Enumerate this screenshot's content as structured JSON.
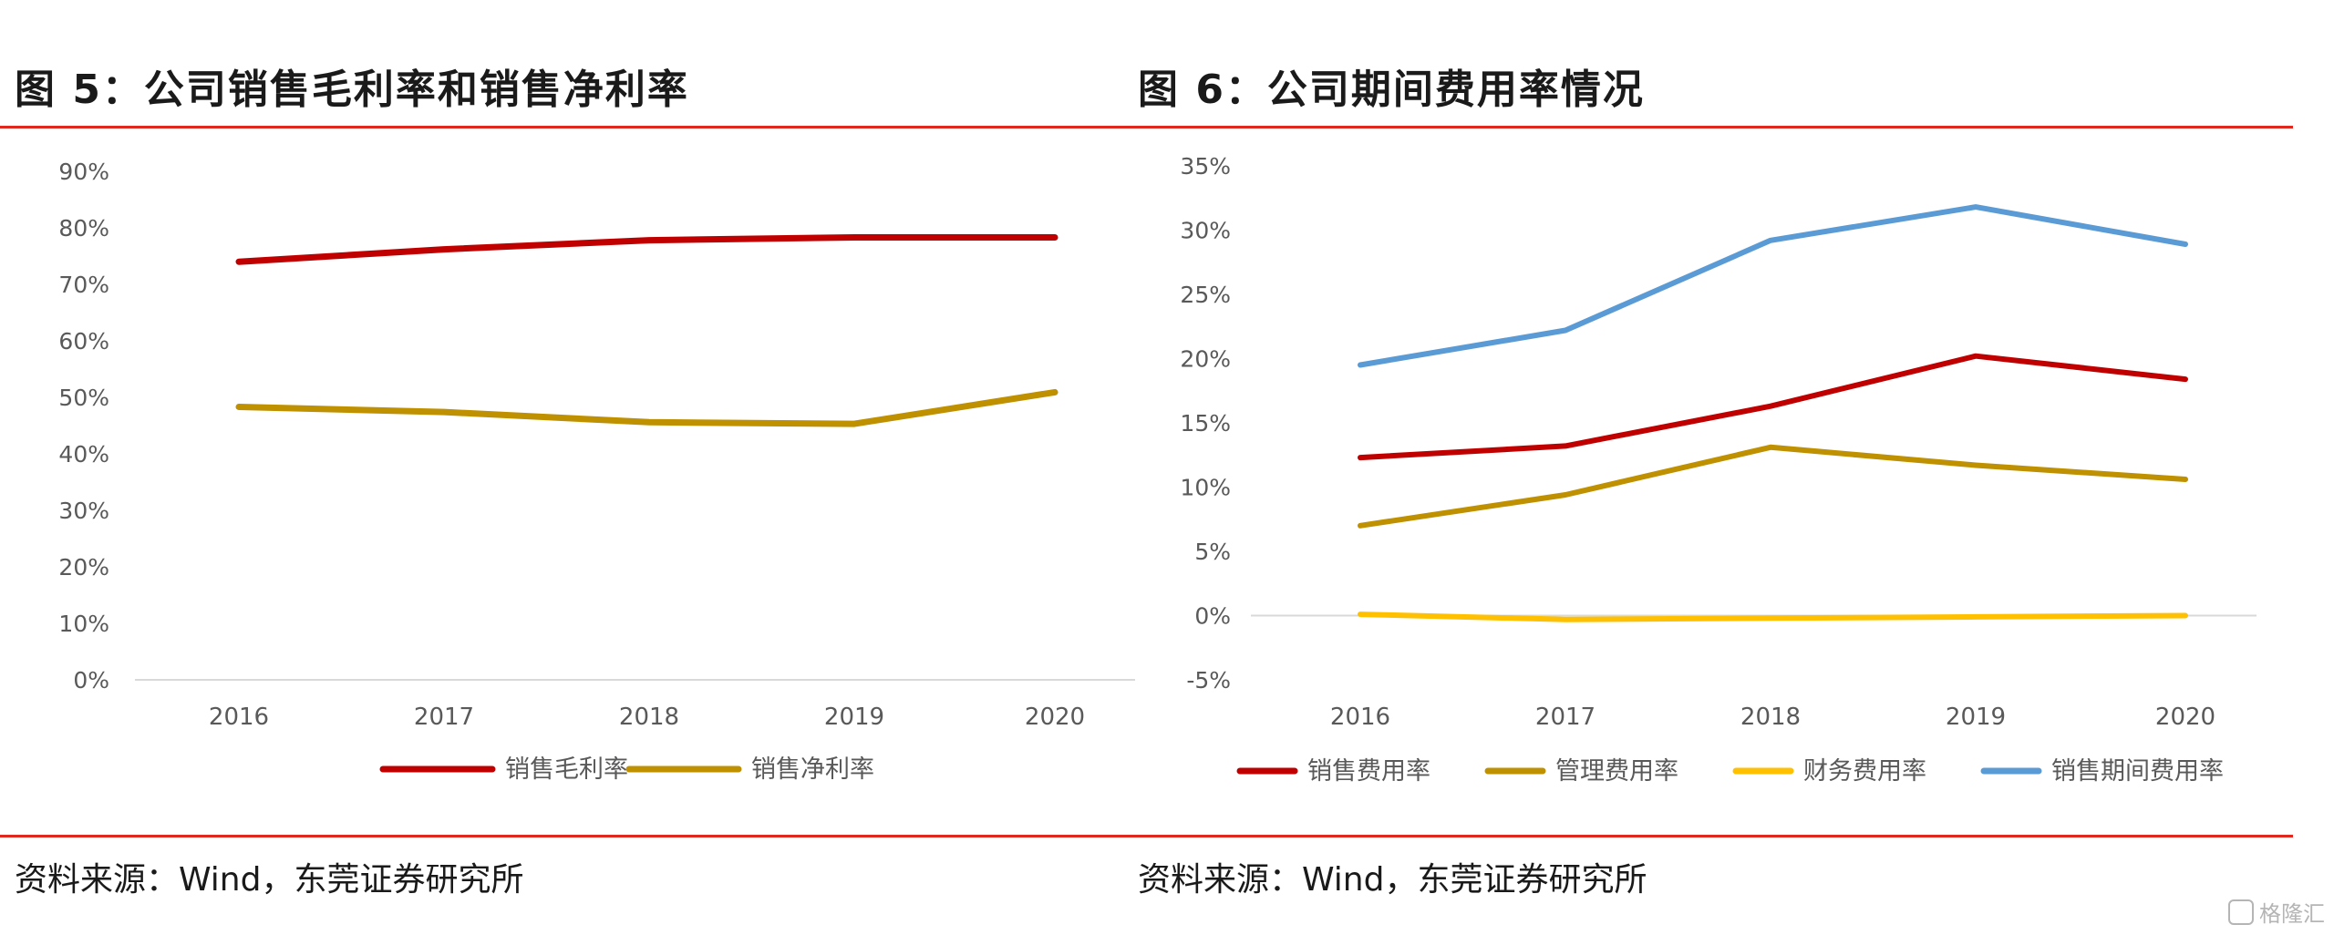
{
  "figures": [
    {
      "title": "图 5：公司销售毛利率和销售净利率",
      "source": "资料来源：Wind，东莞证券研究所"
    },
    {
      "title": "图 6：公司期间费用率情况",
      "source": "资料来源：Wind，东莞证券研究所"
    }
  ],
  "watermark": {
    "text": "格隆汇",
    "icon": "brand-logo-icon"
  },
  "chart_data": [
    {
      "type": "line",
      "title": "图 5：公司销售毛利率和销售净利率",
      "xlabel": "",
      "ylabel": "",
      "categories": [
        "2016",
        "2017",
        "2018",
        "2019",
        "2020"
      ],
      "series": [
        {
          "name": "销售毛利率",
          "color": "#c00000",
          "values": [
            74.0,
            76.2,
            77.8,
            78.3,
            78.3
          ]
        },
        {
          "name": "销售净利率",
          "color": "#bf9000",
          "values": [
            48.3,
            47.4,
            45.6,
            45.3,
            50.9
          ]
        }
      ],
      "ylim": [
        0,
        90
      ],
      "yticks": [
        "0%",
        "10%",
        "20%",
        "30%",
        "40%",
        "50%",
        "60%",
        "70%",
        "80%",
        "90%"
      ],
      "grid": false,
      "legend": "bottom"
    },
    {
      "type": "line",
      "title": "图 6：公司期间费用率情况",
      "xlabel": "",
      "ylabel": "",
      "categories": [
        "2016",
        "2017",
        "2018",
        "2019",
        "2020"
      ],
      "series": [
        {
          "name": "销售费用率",
          "color": "#c00000",
          "values": [
            12.3,
            13.2,
            16.3,
            20.2,
            18.4
          ]
        },
        {
          "name": "管理费用率",
          "color": "#bf9000",
          "values": [
            7.0,
            9.4,
            13.1,
            11.7,
            10.6
          ]
        },
        {
          "name": "财务费用率",
          "color": "#ffc000",
          "values": [
            0.1,
            -0.3,
            -0.2,
            -0.1,
            0.0
          ]
        },
        {
          "name": "销售期间费用率",
          "color": "#5b9bd5",
          "values": [
            19.5,
            22.2,
            29.2,
            31.8,
            28.9
          ]
        }
      ],
      "ylim": [
        -5,
        35
      ],
      "yticks": [
        "-5%",
        "0%",
        "5%",
        "10%",
        "15%",
        "20%",
        "25%",
        "30%",
        "35%"
      ],
      "grid": false,
      "legend": "bottom"
    }
  ]
}
